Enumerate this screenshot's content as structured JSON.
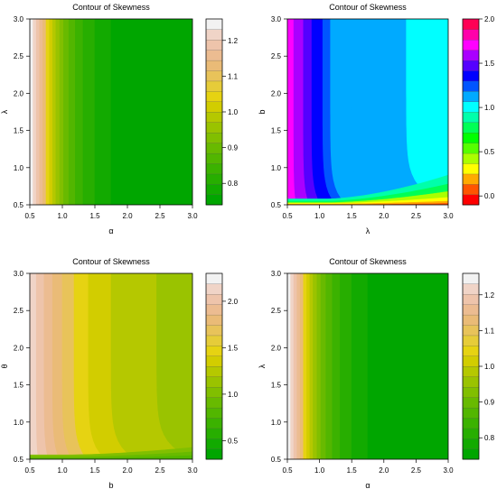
{
  "chart_data": [
    {
      "type": "heatmap",
      "title": "Contour of Skewness",
      "xlabel": "α",
      "ylabel": "λ",
      "xlim": [
        0.5,
        3.0
      ],
      "ylim": [
        0.5,
        3.0
      ],
      "x_ticks": [
        "0.5",
        "1.0",
        "1.5",
        "2.0",
        "2.5",
        "3.0"
      ],
      "y_ticks": [
        "0.5",
        "1.0",
        "1.5",
        "2.0",
        "2.5",
        "3.0"
      ],
      "legend": {
        "placement": "right",
        "range": [
          0.74,
          1.26
        ],
        "ticks": [
          0.8,
          0.9,
          1.0,
          1.1,
          1.2
        ],
        "tick_labels": [
          "0.8",
          "0.9",
          "1.0",
          "1.1",
          "1.2"
        ],
        "colors": [
          "#00a600",
          "#12aa00",
          "#27ae00",
          "#3bb200",
          "#52b600",
          "#68ba00",
          "#81bf00",
          "#9ac300",
          "#b5c800",
          "#d2cd00",
          "#e6d312",
          "#e6cc39",
          "#e8c35a",
          "#eabb77",
          "#ecbc91",
          "#eec4ab",
          "#f0d4c7",
          "#f2f2f2"
        ]
      },
      "levels": {
        "boundaries_x": [
          0.5,
          0.55,
          0.6,
          0.65,
          0.7,
          0.75,
          0.8,
          0.85,
          0.9,
          0.96,
          1.02,
          1.1,
          1.2,
          1.32,
          1.5,
          1.75,
          2.05,
          2.45,
          3.0
        ],
        "band_colors": [
          "#f2f2f2",
          "#f0d4c7",
          "#eec4ab",
          "#ecbc91",
          "#eabb77",
          "#e6d312",
          "#d2cd00",
          "#b5c800",
          "#9ac300",
          "#81bf00",
          "#68ba00",
          "#52b600",
          "#3bb200",
          "#27ae00",
          "#12aa00",
          "#00a600",
          "#00a600",
          "#00a600"
        ],
        "dip_strength": 0.0,
        "dip_decay": 0.2
      }
    },
    {
      "type": "heatmap",
      "title": "Contour of Skewness",
      "xlabel": "λ",
      "ylabel": "b",
      "xlim": [
        0.5,
        3.0
      ],
      "ylim": [
        0.5,
        3.0
      ],
      "x_ticks": [
        "0.5",
        "1.0",
        "1.5",
        "2.0",
        "2.5",
        "3.0"
      ],
      "y_ticks": [
        "0.5",
        "1.0",
        "1.5",
        "2.0",
        "2.5",
        "3.0"
      ],
      "legend": {
        "placement": "right",
        "range": [
          -0.1,
          2.0
        ],
        "ticks": [
          0.0,
          0.5,
          1.0,
          1.5,
          2.0
        ],
        "tick_labels": [
          "0.0",
          "0.5",
          "1.0",
          "1.5",
          "2.0"
        ],
        "colors": [
          "#ff0000",
          "#ff5500",
          "#ffaa00",
          "#ffff00",
          "#aaff00",
          "#55ff00",
          "#00ff00",
          "#00ff55",
          "#00ffaa",
          "#00ffff",
          "#00aaff",
          "#0055ff",
          "#0000ff",
          "#5500ff",
          "#aa00ff",
          "#ff00ff",
          "#ff00aa",
          "#ff0055"
        ]
      },
      "levels": {
        "boundaries_x": [
          0.5,
          0.6,
          0.75,
          0.88,
          1.05,
          1.17,
          1.5,
          2.35,
          3.0
        ],
        "band_colors": [
          "#ff00ff",
          "#aa00ff",
          "#5500ff",
          "#0000ff",
          "#0055ff",
          "#00aaff",
          "#00aaff",
          "#00ffff"
        ],
        "bottom_bands": [
          {
            "top_at_x0": 0.58,
            "top_at_x1": 0.9,
            "color": "#00ffaa"
          },
          {
            "top_at_x0": 0.55,
            "top_at_x1": 0.78,
            "color": "#00ff55"
          },
          {
            "top_at_x0": 0.53,
            "top_at_x1": 0.68,
            "color": "#aaff00"
          },
          {
            "top_at_x0": 0.52,
            "top_at_x1": 0.6,
            "color": "#ffff00"
          },
          {
            "top_at_x0": 0.51,
            "top_at_x1": 0.55,
            "color": "#ffaa00"
          },
          {
            "top_at_x0": 0.5,
            "top_at_x1": 0.52,
            "color": "#ff5500"
          }
        ],
        "dip_strength": 0.38,
        "dip_decay": 0.2
      }
    },
    {
      "type": "heatmap",
      "title": "Contour of Skewness",
      "xlabel": "b",
      "ylabel": "θ",
      "xlim": [
        0.5,
        3.0
      ],
      "ylim": [
        0.5,
        3.0
      ],
      "x_ticks": [
        "0.5",
        "1.0",
        "1.5",
        "2.0",
        "2.5",
        "3.0"
      ],
      "y_ticks": [
        "0.5",
        "1.0",
        "1.5",
        "2.0",
        "2.5",
        "3.0"
      ],
      "legend": {
        "placement": "right",
        "range": [
          0.3,
          2.3
        ],
        "ticks": [
          0.5,
          1.0,
          1.5,
          2.0
        ],
        "tick_labels": [
          "0.5",
          "1.0",
          "1.5",
          "2.0"
        ],
        "colors": [
          "#00a600",
          "#12aa00",
          "#27ae00",
          "#3bb200",
          "#52b600",
          "#68ba00",
          "#81bf00",
          "#9ac300",
          "#b5c800",
          "#d2cd00",
          "#e6d312",
          "#e6cc39",
          "#e8c35a",
          "#eabb77",
          "#ecbc91",
          "#eec4ab",
          "#f0d4c7",
          "#f2f2f2"
        ]
      },
      "levels": {
        "boundaries_x": [
          0.5,
          0.6,
          0.72,
          0.85,
          1.0,
          1.18,
          1.4,
          1.75,
          2.45,
          3.0
        ],
        "band_colors": [
          "#f0d4c7",
          "#eec4ab",
          "#ecbc91",
          "#eabb77",
          "#e8c35a",
          "#e6d312",
          "#d2cd00",
          "#b5c800",
          "#9ac300"
        ],
        "bottom_bands": [
          {
            "top_at_x0": 0.56,
            "top_at_x1": 0.66,
            "color": "#81bf00"
          },
          {
            "top_at_x0": 0.53,
            "top_at_x1": 0.6,
            "color": "#68ba00"
          },
          {
            "top_at_x0": 0.51,
            "top_at_x1": 0.55,
            "color": "#52b600"
          }
        ],
        "dip_strength": 0.3,
        "dip_decay": 0.2
      }
    },
    {
      "type": "heatmap",
      "title": "Contour of Skewness",
      "xlabel": "α",
      "ylabel": "λ",
      "xlim": [
        0.5,
        3.0
      ],
      "ylim": [
        0.5,
        3.0
      ],
      "x_ticks": [
        "0.5",
        "1.0",
        "1.5",
        "2.0",
        "2.5",
        "3.0"
      ],
      "y_ticks": [
        "0.5",
        "1.0",
        "1.5",
        "2.0",
        "2.5",
        "3.0"
      ],
      "legend": {
        "placement": "right",
        "range": [
          0.74,
          1.26
        ],
        "ticks": [
          0.8,
          0.9,
          1.0,
          1.1,
          1.2
        ],
        "tick_labels": [
          "0.8",
          "0.9",
          "1.0",
          "1.1",
          "1.2"
        ],
        "colors": [
          "#00a600",
          "#12aa00",
          "#27ae00",
          "#3bb200",
          "#52b600",
          "#68ba00",
          "#81bf00",
          "#9ac300",
          "#b5c800",
          "#d2cd00",
          "#e6d312",
          "#e6cc39",
          "#e8c35a",
          "#eabb77",
          "#ecbc91",
          "#eec4ab",
          "#f0d4c7",
          "#f2f2f2"
        ]
      },
      "levels": {
        "boundaries_x": [
          0.5,
          0.55,
          0.6,
          0.65,
          0.7,
          0.75,
          0.8,
          0.85,
          0.9,
          0.96,
          1.02,
          1.1,
          1.2,
          1.32,
          1.5,
          1.75,
          2.05,
          2.45,
          3.0
        ],
        "band_colors": [
          "#f2f2f2",
          "#f0d4c7",
          "#eec4ab",
          "#ecbc91",
          "#eabb77",
          "#e6d312",
          "#d2cd00",
          "#b5c800",
          "#9ac300",
          "#81bf00",
          "#68ba00",
          "#52b600",
          "#3bb200",
          "#27ae00",
          "#12aa00",
          "#00a600",
          "#00a600",
          "#00a600"
        ],
        "dip_strength": 0.0,
        "dip_decay": 0.2
      }
    }
  ]
}
